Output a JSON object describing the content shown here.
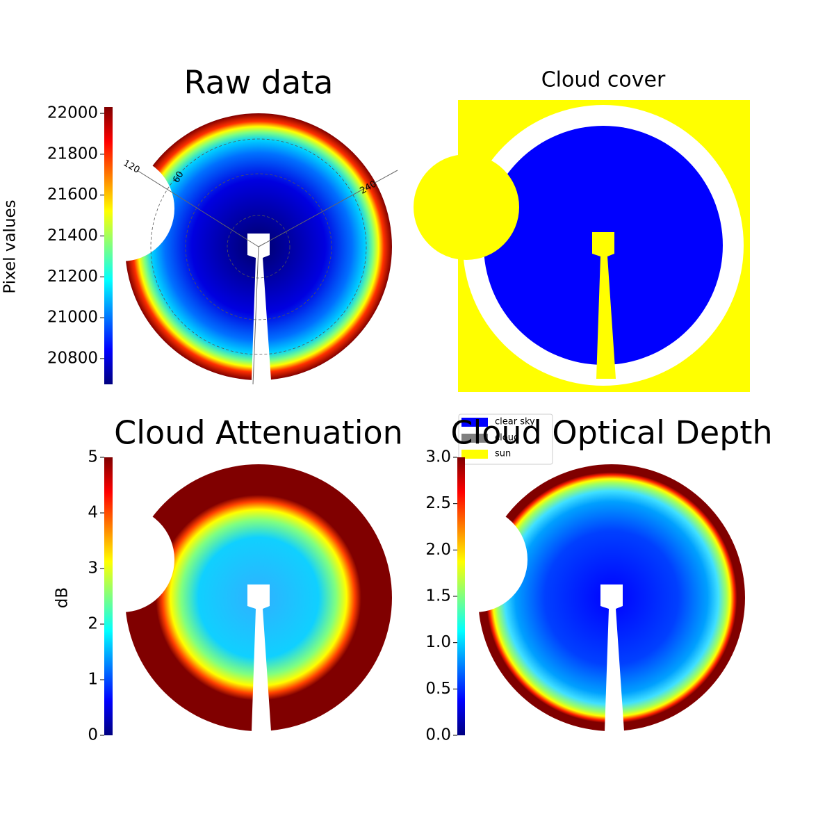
{
  "chart_data": [
    {
      "type": "image",
      "title": "Raw data",
      "colorbar_label": "Pixel values",
      "colormap": "jet",
      "ylim": [
        20674,
        22031
      ],
      "yticks": [
        20800,
        21000,
        21200,
        21400,
        21600,
        21800,
        22000
      ],
      "annotations": [
        "120",
        "60",
        "240"
      ]
    },
    {
      "type": "image",
      "title": "Cloud cover",
      "legend": "lower left",
      "series": [
        {
          "name": "clear sky",
          "color": "#0000ff"
        },
        {
          "name": "cloud",
          "color": "#808080"
        },
        {
          "name": "sun",
          "color": "#ffff00"
        }
      ]
    },
    {
      "type": "image",
      "title": "Cloud Attenuation",
      "colorbar_label": "dB",
      "colormap": "jet",
      "ylim": [
        0,
        5
      ],
      "yticks": [
        0,
        1,
        2,
        3,
        4,
        5
      ]
    },
    {
      "type": "image",
      "title": "Cloud Optical Depth",
      "colormap": "jet",
      "ylim": [
        0,
        3
      ],
      "yticks": [
        {
          "value": 0,
          "label": "0.0"
        },
        0.5,
        {
          "value": 1,
          "label": "1.0"
        },
        1.5,
        {
          "value": 2,
          "label": "2.0"
        },
        2.5,
        {
          "value": 3,
          "label": "3.0"
        }
      ]
    }
  ]
}
